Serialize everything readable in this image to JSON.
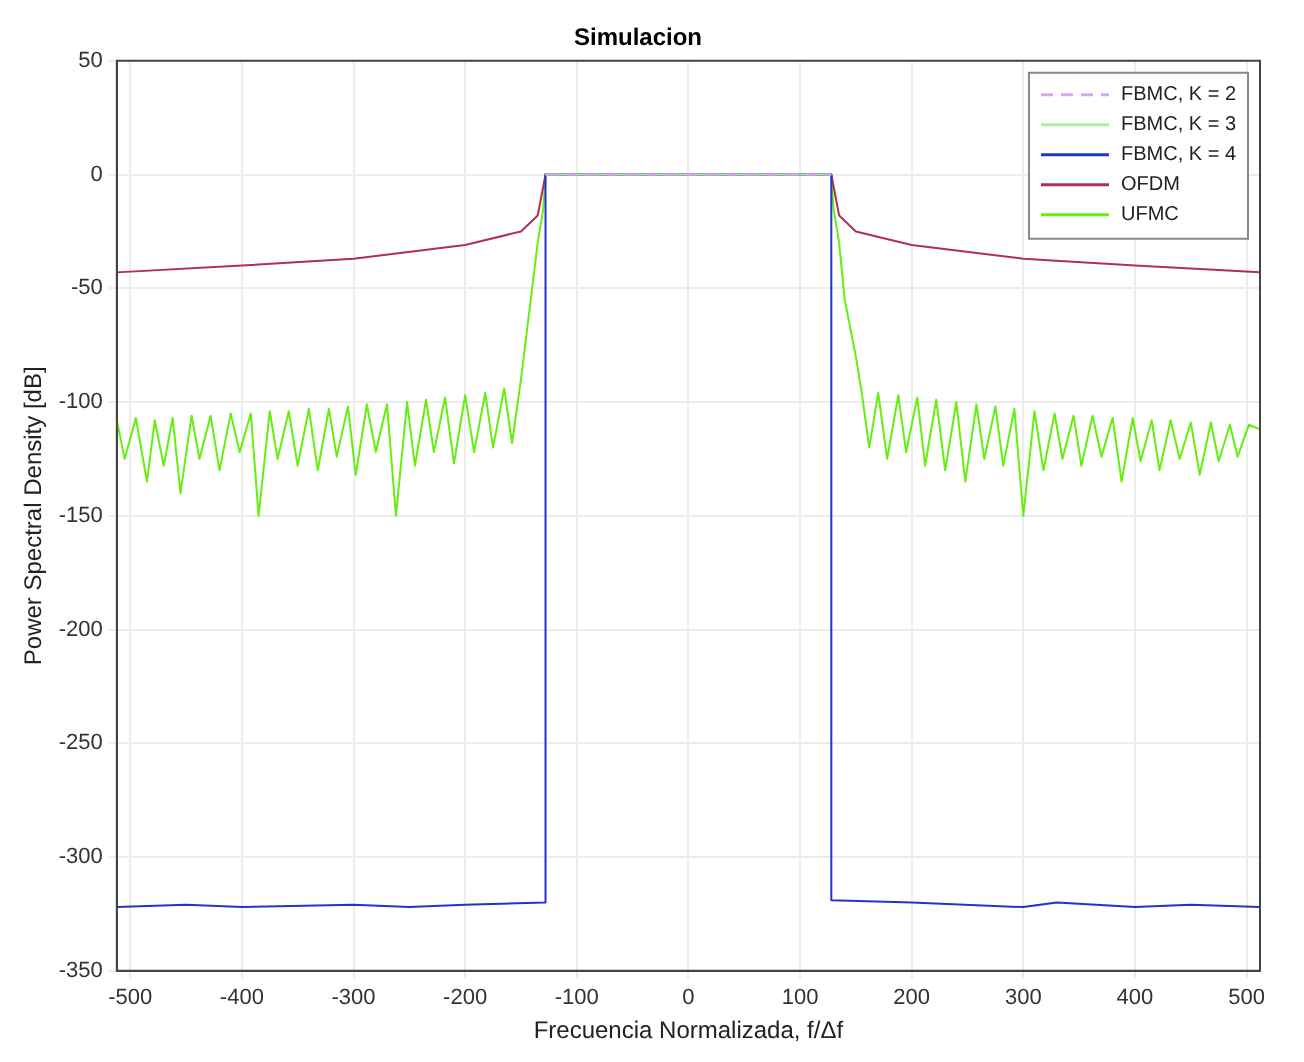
{
  "chart_data": {
    "type": "line",
    "title": "Simulacion",
    "xlabel": "Frecuencia Normalizada, f/Δf",
    "ylabel": "Power Spectral Density [dB]",
    "xlim": [
      -512,
      512
    ],
    "ylim": [
      -350,
      50
    ],
    "xticks": [
      -500,
      -400,
      -300,
      -200,
      -100,
      0,
      100,
      200,
      300,
      400,
      500
    ],
    "yticks": [
      -350,
      -300,
      -250,
      -200,
      -150,
      -100,
      -50,
      0,
      50
    ],
    "grid": true,
    "legend": "top right",
    "line_style": "solid",
    "marker": "none",
    "series": [
      {
        "name": "FBMC, K = 2",
        "color": "#d9a6f2",
        "line_style": "dashed",
        "x": [
          -128,
          0,
          128
        ],
        "values": [
          0,
          0,
          0
        ]
      },
      {
        "name": "FBMC, K = 3",
        "color": "#a6eba6",
        "x": [
          -128,
          0,
          128
        ],
        "values": [
          0,
          0,
          0
        ]
      },
      {
        "name": "FBMC, K = 4",
        "color": "#2233cc",
        "x": [
          -512,
          -450,
          -400,
          -300,
          -250,
          -200,
          -128,
          -128,
          0,
          128,
          128,
          200,
          300,
          330,
          400,
          450,
          512
        ],
        "values": [
          -322,
          -321,
          -322,
          -321,
          -322,
          -321,
          -320,
          0,
          0,
          0,
          -319,
          -320,
          -322,
          -320,
          -322,
          -321,
          -322
        ]
      },
      {
        "name": "OFDM",
        "color": "#b03050",
        "x": [
          -512,
          -400,
          -300,
          -200,
          -150,
          -135,
          -128,
          0,
          128,
          135,
          150,
          200,
          300,
          400,
          512
        ],
        "values": [
          -43,
          -40,
          -37,
          -31,
          -25,
          -18,
          0,
          0,
          0,
          -18,
          -25,
          -31,
          -37,
          -40,
          -43
        ]
      },
      {
        "name": "UFMC",
        "color": "#66ee11",
        "x": [
          -512,
          -505,
          -495,
          -485,
          -478,
          -470,
          -462,
          -455,
          -445,
          -438,
          -428,
          -420,
          -410,
          -402,
          -392,
          -385,
          -375,
          -368,
          -358,
          -350,
          -340,
          -332,
          -322,
          -315,
          -305,
          -298,
          -288,
          -280,
          -270,
          -262,
          -252,
          -245,
          -235,
          -228,
          -218,
          -210,
          -200,
          -192,
          -182,
          -175,
          -165,
          -158,
          -150,
          -145,
          -140,
          -135,
          -130,
          -128,
          0,
          128,
          130,
          135,
          140,
          150,
          155,
          162,
          170,
          178,
          188,
          195,
          205,
          212,
          222,
          230,
          240,
          248,
          258,
          265,
          275,
          282,
          292,
          300,
          310,
          318,
          328,
          335,
          345,
          352,
          362,
          370,
          380,
          388,
          398,
          405,
          415,
          422,
          432,
          440,
          450,
          458,
          468,
          475,
          485,
          492,
          502,
          512
        ],
        "values": [
          -108,
          -125,
          -107,
          -135,
          -108,
          -128,
          -107,
          -140,
          -106,
          -125,
          -106,
          -130,
          -105,
          -122,
          -105,
          -150,
          -104,
          -125,
          -104,
          -128,
          -103,
          -130,
          -103,
          -124,
          -102,
          -132,
          -101,
          -122,
          -101,
          -150,
          -100,
          -128,
          -99,
          -122,
          -98,
          -127,
          -97,
          -122,
          -96,
          -120,
          -94,
          -118,
          -90,
          -70,
          -50,
          -30,
          -15,
          0,
          0,
          0,
          -15,
          -30,
          -55,
          -80,
          -95,
          -120,
          -96,
          -125,
          -97,
          -122,
          -98,
          -128,
          -99,
          -130,
          -100,
          -135,
          -101,
          -125,
          -102,
          -128,
          -103,
          -150,
          -104,
          -130,
          -105,
          -125,
          -106,
          -128,
          -106,
          -124,
          -107,
          -135,
          -107,
          -126,
          -108,
          -130,
          -108,
          -125,
          -109,
          -132,
          -109,
          -126,
          -110,
          -124,
          -110,
          -112
        ]
      }
    ]
  }
}
